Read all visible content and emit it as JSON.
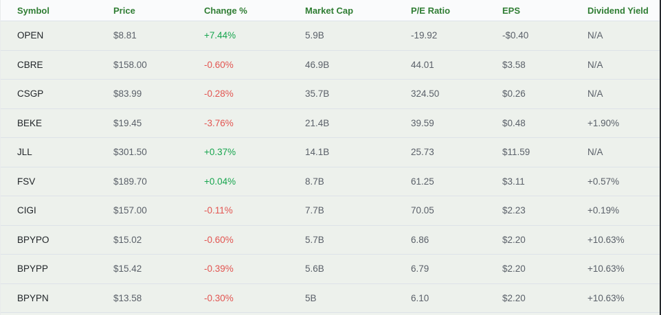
{
  "table": {
    "columns": [
      {
        "key": "symbol",
        "label": "Symbol"
      },
      {
        "key": "price",
        "label": "Price"
      },
      {
        "key": "change",
        "label": "Change %"
      },
      {
        "key": "market_cap",
        "label": "Market Cap"
      },
      {
        "key": "pe_ratio",
        "label": "P/E Ratio"
      },
      {
        "key": "eps",
        "label": "EPS"
      },
      {
        "key": "dividend_yield",
        "label": "Dividend Yield"
      }
    ],
    "rows": [
      {
        "symbol": "OPEN",
        "price": "$8.81",
        "change": "+7.44%",
        "market_cap": "5.9B",
        "pe_ratio": "-19.92",
        "eps": "-$0.40",
        "dividend_yield": "N/A"
      },
      {
        "symbol": "CBRE",
        "price": "$158.00",
        "change": "-0.60%",
        "market_cap": "46.9B",
        "pe_ratio": "44.01",
        "eps": "$3.58",
        "dividend_yield": "N/A"
      },
      {
        "symbol": "CSGP",
        "price": "$83.99",
        "change": "-0.28%",
        "market_cap": "35.7B",
        "pe_ratio": "324.50",
        "eps": "$0.26",
        "dividend_yield": "N/A"
      },
      {
        "symbol": "BEKE",
        "price": "$19.45",
        "change": "-3.76%",
        "market_cap": "21.4B",
        "pe_ratio": "39.59",
        "eps": "$0.48",
        "dividend_yield": "+1.90%"
      },
      {
        "symbol": "JLL",
        "price": "$301.50",
        "change": "+0.37%",
        "market_cap": "14.1B",
        "pe_ratio": "25.73",
        "eps": "$11.59",
        "dividend_yield": "N/A"
      },
      {
        "symbol": "FSV",
        "price": "$189.70",
        "change": "+0.04%",
        "market_cap": "8.7B",
        "pe_ratio": "61.25",
        "eps": "$3.11",
        "dividend_yield": "+0.57%"
      },
      {
        "symbol": "CIGI",
        "price": "$157.00",
        "change": "-0.11%",
        "market_cap": "7.7B",
        "pe_ratio": "70.05",
        "eps": "$2.23",
        "dividend_yield": "+0.19%"
      },
      {
        "symbol": "BPYPO",
        "price": "$15.02",
        "change": "-0.60%",
        "market_cap": "5.7B",
        "pe_ratio": "6.86",
        "eps": "$2.20",
        "dividend_yield": "+10.63%"
      },
      {
        "symbol": "BPYPP",
        "price": "$15.42",
        "change": "-0.39%",
        "market_cap": "5.6B",
        "pe_ratio": "6.79",
        "eps": "$2.20",
        "dividend_yield": "+10.63%"
      },
      {
        "symbol": "BPYPN",
        "price": "$13.58",
        "change": "-0.30%",
        "market_cap": "5B",
        "pe_ratio": "6.10",
        "eps": "$2.20",
        "dividend_yield": "+10.63%"
      }
    ]
  },
  "colors": {
    "header_text": "#2f7d33",
    "positive_change": "#17a54e",
    "negative_change": "#e25450",
    "header_bg": "#fafbfc",
    "row_bg": "#edf1ec"
  }
}
